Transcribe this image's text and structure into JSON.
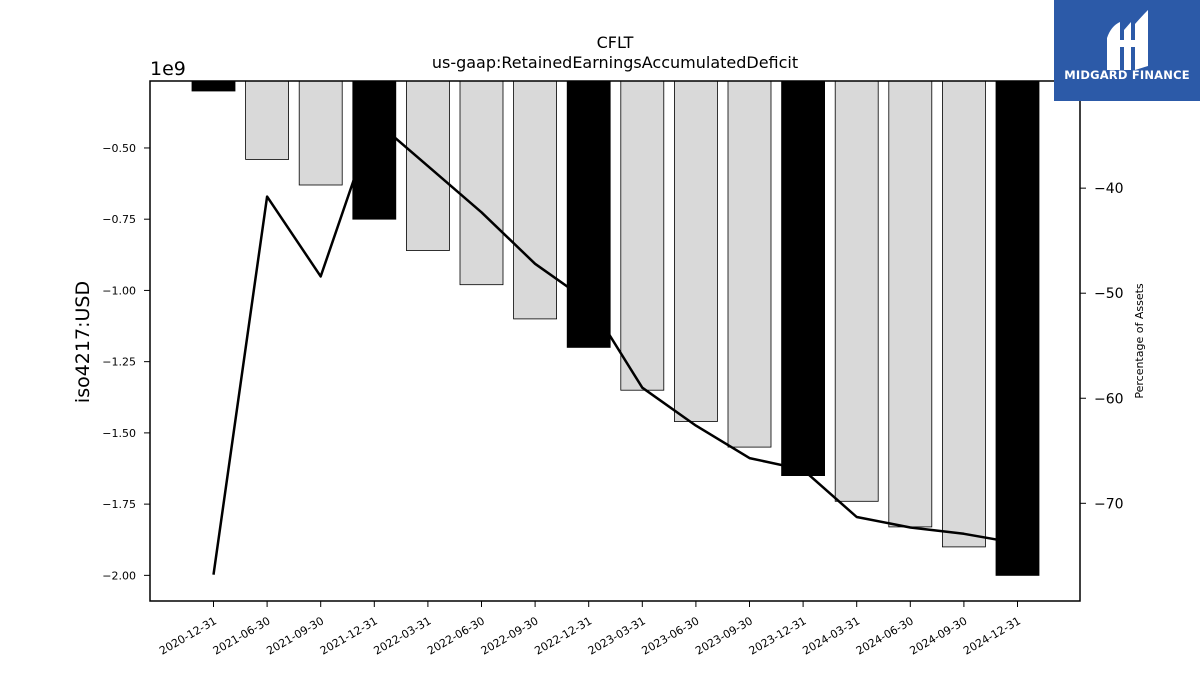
{
  "chart_data": {
    "type": "bar",
    "title": "CFLT",
    "subtitle": "us-gaap:RetainedEarningsAccumulatedDeficit",
    "ylabel": "iso4217:USD",
    "y_offset_label": "1e9",
    "y2label": "Percentage of Assets",
    "categories": [
      "2020-12-31",
      "2021-06-30",
      "2021-09-30",
      "2021-12-31",
      "2022-03-31",
      "2022-06-30",
      "2022-09-30",
      "2022-12-31",
      "2023-03-31",
      "2023-06-30",
      "2023-09-30",
      "2023-12-31",
      "2024-03-31",
      "2024-06-30",
      "2024-09-30",
      "2024-12-31"
    ],
    "series": [
      {
        "type": "bar",
        "values": [
          -0.3,
          -0.54,
          -0.63,
          -0.75,
          -0.86,
          -0.98,
          -1.1,
          -1.2,
          -1.35,
          -1.46,
          -1.55,
          -1.65,
          -1.74,
          -1.83,
          -1.9,
          -2.0
        ],
        "highlight": [
          true,
          false,
          false,
          true,
          false,
          false,
          false,
          true,
          false,
          false,
          false,
          true,
          false,
          false,
          false,
          true
        ],
        "colors": {
          "highlight": "#000000",
          "normal": "#d9d9d9"
        }
      },
      {
        "type": "line",
        "axis": "right",
        "values": [
          -76.8,
          -40.8,
          -48.4,
          -33.5,
          -37.9,
          -42.3,
          -47.2,
          -50.8,
          -59.0,
          -62.6,
          -65.7,
          -66.8,
          -71.3,
          -72.3,
          -72.9,
          -73.8
        ],
        "color": "#000000"
      }
    ],
    "ylim": [
      -2.09,
      -0.265
    ],
    "yticks": [
      -0.5,
      -0.75,
      -1.0,
      -1.25,
      -1.5,
      -1.75,
      -2.0
    ],
    "ytick_labels": [
      "−0.50",
      "−0.75",
      "−1.00",
      "−1.25",
      "−1.50",
      "−1.75",
      "−2.00"
    ],
    "y2lim": [
      -79.3,
      -29.8
    ],
    "y2ticks": [
      -40,
      -50,
      -60,
      -70
    ],
    "y2tick_labels": [
      "−40",
      "−50",
      "−60",
      "−70"
    ],
    "grid": false
  },
  "logo": {
    "text": "MIDGARD FINANCE"
  }
}
